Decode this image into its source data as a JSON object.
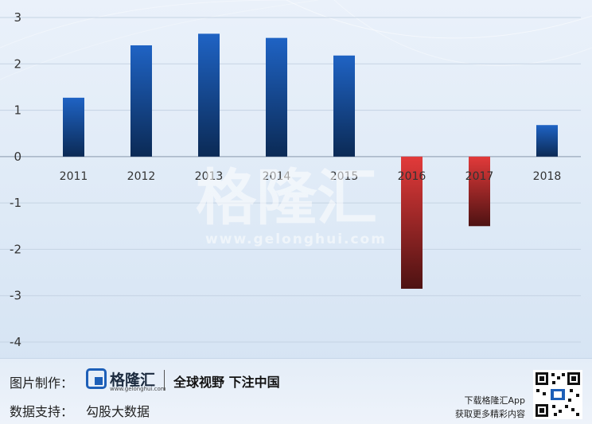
{
  "chart_data": {
    "type": "bar",
    "categories": [
      "2011",
      "2012",
      "2013",
      "2014",
      "2015",
      "2016",
      "2017",
      "2018"
    ],
    "values": [
      1.27,
      2.4,
      2.65,
      2.56,
      2.18,
      -2.85,
      -1.5,
      0.68
    ],
    "ylim": [
      -4,
      3
    ],
    "yticks": [
      3,
      2,
      1,
      0,
      -1,
      -2,
      -3,
      -4
    ],
    "grid": true,
    "colors": {
      "positive": "#1f63c4",
      "positive_dark": "#0b2a55",
      "negative": "#e23a3a",
      "negative_dark": "#4d1212"
    },
    "title": "",
    "xlabel": "",
    "ylabel": ""
  },
  "watermark": {
    "brand": "格隆汇",
    "url": "www.gelonghui.com"
  },
  "footer": {
    "made_by_label": "图片制作：",
    "brand_name": "格隆汇",
    "brand_url": "www.gelonghui.com",
    "slogan": "全球视野 下注中国",
    "data_support_label": "数据支持：",
    "data_support_value": "勾股大数据",
    "app_line1": "下载格隆汇App",
    "app_line2": "获取更多精彩内容",
    "qr_icon": "qr-code-icon"
  }
}
